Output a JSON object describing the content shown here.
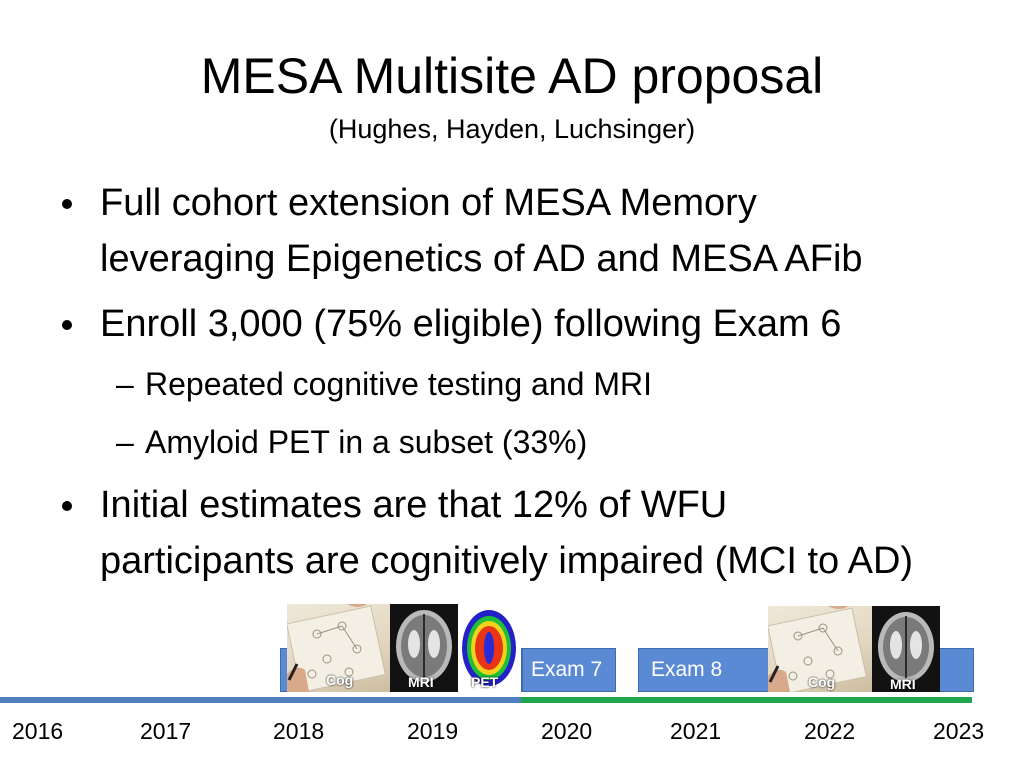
{
  "slide": {
    "title": "MESA Multisite AD proposal",
    "subtitle": "(Hughes, Hayden, Luchsinger)"
  },
  "bullets": {
    "b1_line1": "Full cohort extension of MESA Memory",
    "b1_line2": "leveraging Epigenetics of AD and MESA AFib",
    "b2": "Enroll 3,000 (75% eligible) following Exam 6",
    "b2_sub1": "Repeated cognitive testing and MRI",
    "b2_sub2": "Amyloid PET in a subset (33%)",
    "b3_line1": "Initial estimates are that 12% of WFU",
    "b3_line2": "participants are cognitively impaired (MCI to AD)"
  },
  "timeline": {
    "years": [
      "2016",
      "2017",
      "2018",
      "2019",
      "2020",
      "2021",
      "2022",
      "2023"
    ],
    "exam7": "Exam 7",
    "exam8": "Exam 8",
    "img_labels": {
      "cog_a": "Cog",
      "mri_a": "MRI",
      "pet_a": "PET",
      "cog_b": "Cog",
      "mri_b": "MRI"
    },
    "colors": {
      "bar_pre": "#4f7fbf",
      "bar_post": "#1fa54e",
      "exam_box": "#5b8ad4"
    }
  }
}
